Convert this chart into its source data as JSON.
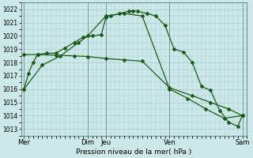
{
  "background_color": "#cce8e8",
  "grid_color": "#aacccc",
  "line_color": "#1a5c1a",
  "marker_color": "#1a5c1a",
  "title": "Pression niveau de la mer( hPa )",
  "ylim": [
    1012.5,
    1022.5
  ],
  "yticks": [
    1013,
    1014,
    1015,
    1016,
    1017,
    1018,
    1019,
    1020,
    1021,
    1022
  ],
  "x_vline_positions": [
    0,
    7,
    9,
    16,
    24
  ],
  "x_tick_positions": [
    0,
    7,
    9,
    16,
    24
  ],
  "x_tick_labels": [
    "Mer",
    "Dim",
    "Jeu",
    "Ven",
    "Sam"
  ],
  "xlim": [
    -0.3,
    24.5
  ],
  "series1_x": [
    0,
    0.5,
    1.0,
    1.5,
    2.5,
    3.5,
    4.5,
    5.5,
    6.5,
    7.5,
    8.5,
    9.0,
    9.5,
    10.5,
    11.5,
    12.0,
    12.5,
    13.5,
    14.5,
    15.5,
    16.5,
    17.5,
    18.5,
    19.5,
    20.5,
    21.5,
    22.5,
    23.5,
    24
  ],
  "series1_y": [
    1016.0,
    1017.2,
    1018.0,
    1018.6,
    1018.7,
    1018.7,
    1019.1,
    1019.5,
    1019.9,
    1020.0,
    1020.1,
    1021.4,
    1021.5,
    1021.7,
    1021.85,
    1021.9,
    1021.85,
    1021.7,
    1021.5,
    1020.8,
    1019.0,
    1018.8,
    1018.0,
    1016.2,
    1015.9,
    1014.4,
    1013.5,
    1013.2,
    1014.0
  ],
  "series2_x": [
    0,
    1.5,
    3.5,
    5.5,
    7,
    9,
    11,
    13,
    16,
    18.5,
    20.5,
    22.5,
    24
  ],
  "series2_y": [
    1018.6,
    1018.6,
    1018.55,
    1018.5,
    1018.45,
    1018.3,
    1018.2,
    1018.1,
    1016.1,
    1015.5,
    1015.0,
    1014.5,
    1014.0
  ],
  "series3_x": [
    0,
    2,
    4,
    6,
    7,
    9,
    11,
    13,
    16,
    18,
    20,
    22,
    24
  ],
  "series3_y": [
    1016.0,
    1017.8,
    1018.5,
    1019.5,
    1020.0,
    1021.5,
    1021.7,
    1021.5,
    1016.0,
    1015.3,
    1014.5,
    1013.8,
    1014.0
  ]
}
